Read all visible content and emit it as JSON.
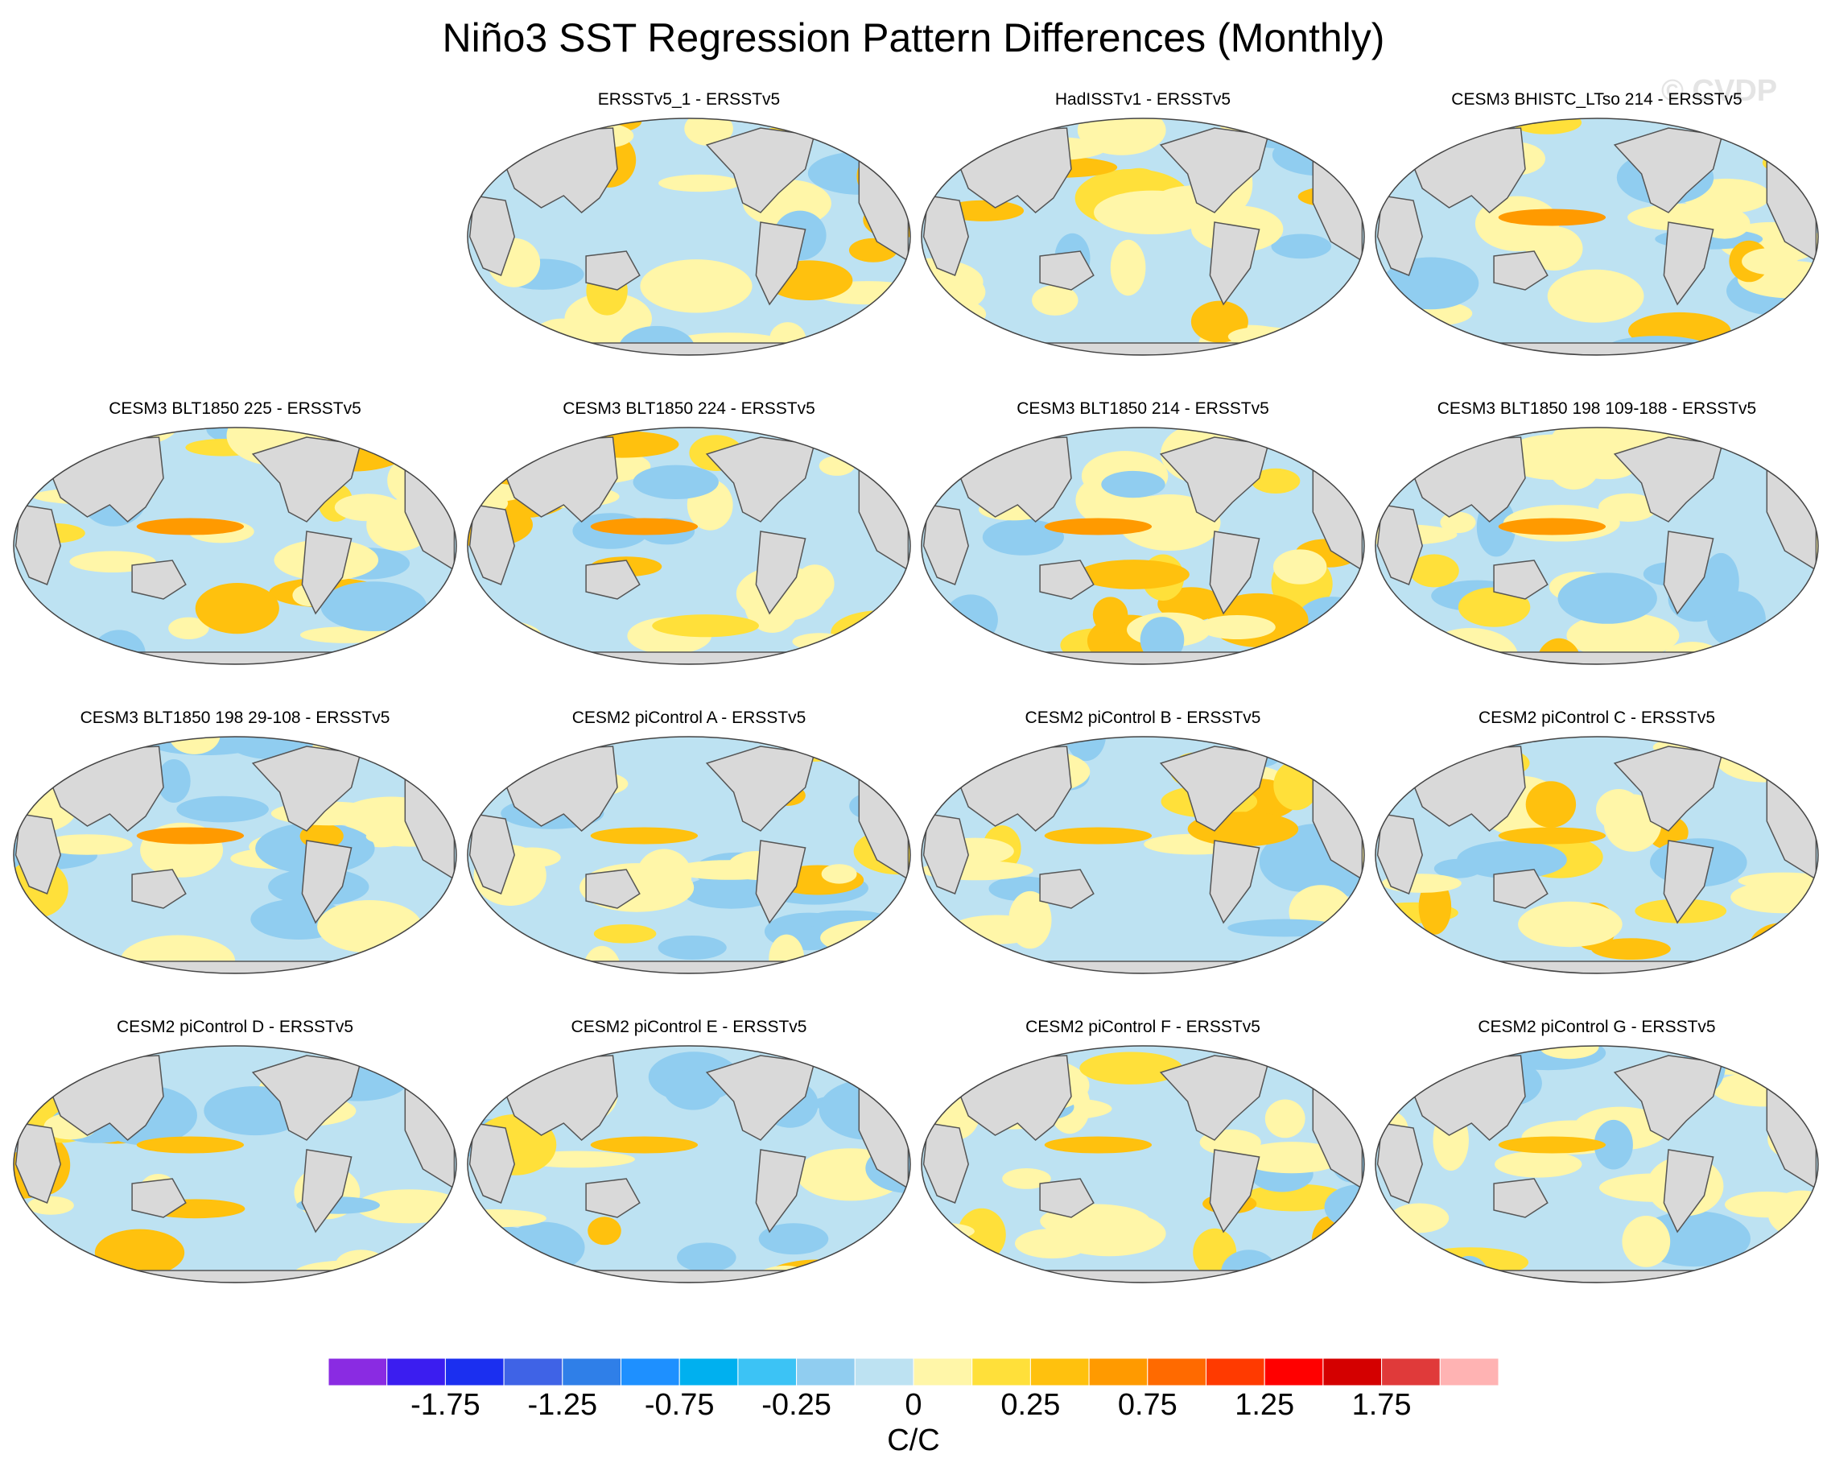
{
  "title": "Niño3 SST Regression Pattern Differences (Monthly)",
  "watermark": "© CVDP",
  "colors": {
    "ocean_base": "#bde2f2",
    "land": "#d9d9d9",
    "coast": "#555555"
  },
  "panels": [
    {
      "title": "ERSSTv5_1 - ERSSTv5"
    },
    {
      "title": "HadISSTv1 - ERSSTv5"
    },
    {
      "title": "CESM3 BHISTC_LTso 214 - ERSSTv5"
    },
    {
      "title": "CESM3 BLT1850 225 - ERSSTv5"
    },
    {
      "title": "CESM3 BLT1850 224 - ERSSTv5"
    },
    {
      "title": "CESM3 BLT1850 214 - ERSSTv5"
    },
    {
      "title": "CESM3 BLT1850 198 109-188 - ERSSTv5"
    },
    {
      "title": "CESM3 BLT1850 198 29-108 - ERSSTv5"
    },
    {
      "title": "CESM2 piControl A - ERSSTv5"
    },
    {
      "title": "CESM2 piControl B - ERSSTv5"
    },
    {
      "title": "CESM2 piControl C - ERSSTv5"
    },
    {
      "title": "CESM2 piControl D - ERSSTv5"
    },
    {
      "title": "CESM2 piControl E - ERSSTv5"
    },
    {
      "title": "CESM2 piControl F - ERSSTv5"
    },
    {
      "title": "CESM2 piControl G - ERSSTv5"
    }
  ],
  "colorbar": {
    "units": "C/C",
    "colors": [
      "#8a2be2",
      "#3b1df0",
      "#1b2ff0",
      "#3f63e6",
      "#2f7fe8",
      "#1e90ff",
      "#00b0ef",
      "#3cc3f5",
      "#90cdf0",
      "#bde2f2",
      "#fff6a8",
      "#ffe03a",
      "#ffc10e",
      "#ff9a00",
      "#ff6a00",
      "#ff3a00",
      "#ff0000",
      "#d40000",
      "#e03a3a",
      "#ffb3b3"
    ],
    "labels": [
      "-1.75",
      "-1.25",
      "-0.75",
      "-0.25",
      "0",
      "0.25",
      "0.75",
      "1.25",
      "1.75"
    ]
  }
}
